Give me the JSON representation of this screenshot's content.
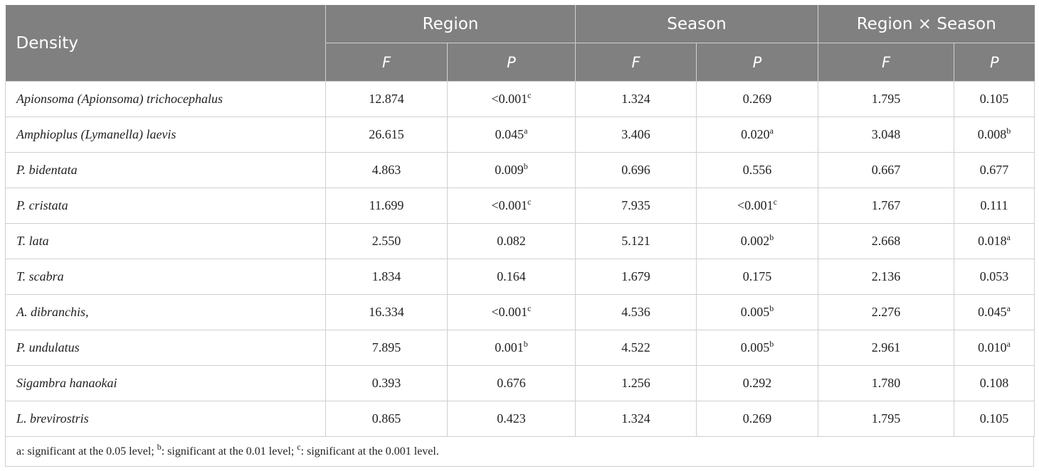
{
  "header": {
    "row_label": "Density",
    "groups": [
      "Region",
      "Season",
      "Region × Season"
    ],
    "subcols": [
      "F",
      "P",
      "F",
      "P",
      "F",
      "P"
    ]
  },
  "rows": [
    {
      "name": "Apionsoma (Apionsoma) trichocephalus",
      "cells": [
        {
          "v": "12.874",
          "s": ""
        },
        {
          "v": "<0.001",
          "s": "c"
        },
        {
          "v": "1.324",
          "s": ""
        },
        {
          "v": "0.269",
          "s": ""
        },
        {
          "v": "1.795",
          "s": ""
        },
        {
          "v": "0.105",
          "s": ""
        }
      ]
    },
    {
      "name": "Amphioplus (Lymanella) laevis",
      "cells": [
        {
          "v": "26.615",
          "s": ""
        },
        {
          "v": "0.045",
          "s": "a"
        },
        {
          "v": "3.406",
          "s": ""
        },
        {
          "v": "0.020",
          "s": "a"
        },
        {
          "v": "3.048",
          "s": ""
        },
        {
          "v": "0.008",
          "s": "b"
        }
      ]
    },
    {
      "name": "P. bidentata",
      "cells": [
        {
          "v": "4.863",
          "s": ""
        },
        {
          "v": "0.009",
          "s": "b"
        },
        {
          "v": "0.696",
          "s": ""
        },
        {
          "v": "0.556",
          "s": ""
        },
        {
          "v": "0.667",
          "s": ""
        },
        {
          "v": "0.677",
          "s": ""
        }
      ]
    },
    {
      "name": "P. cristata",
      "cells": [
        {
          "v": "11.699",
          "s": ""
        },
        {
          "v": "<0.001",
          "s": "c"
        },
        {
          "v": "7.935",
          "s": ""
        },
        {
          "v": "<0.001",
          "s": "c"
        },
        {
          "v": "1.767",
          "s": ""
        },
        {
          "v": "0.111",
          "s": ""
        }
      ]
    },
    {
      "name": "T. lata",
      "cells": [
        {
          "v": "2.550",
          "s": ""
        },
        {
          "v": "0.082",
          "s": ""
        },
        {
          "v": "5.121",
          "s": ""
        },
        {
          "v": "0.002",
          "s": "b"
        },
        {
          "v": "2.668",
          "s": ""
        },
        {
          "v": "0.018",
          "s": "a"
        }
      ]
    },
    {
      "name": "T. scabra",
      "cells": [
        {
          "v": "1.834",
          "s": ""
        },
        {
          "v": "0.164",
          "s": ""
        },
        {
          "v": "1.679",
          "s": ""
        },
        {
          "v": "0.175",
          "s": ""
        },
        {
          "v": "2.136",
          "s": ""
        },
        {
          "v": "0.053",
          "s": ""
        }
      ]
    },
    {
      "name": "A. dibranchis,",
      "cells": [
        {
          "v": "16.334",
          "s": ""
        },
        {
          "v": "<0.001",
          "s": "c"
        },
        {
          "v": "4.536",
          "s": ""
        },
        {
          "v": "0.005",
          "s": "b"
        },
        {
          "v": "2.276",
          "s": ""
        },
        {
          "v": "0.045",
          "s": "a"
        }
      ]
    },
    {
      "name": "P. undulatus",
      "cells": [
        {
          "v": "7.895",
          "s": ""
        },
        {
          "v": "0.001",
          "s": "b"
        },
        {
          "v": "4.522",
          "s": ""
        },
        {
          "v": "0.005",
          "s": "b"
        },
        {
          "v": "2.961",
          "s": ""
        },
        {
          "v": "0.010",
          "s": "a"
        }
      ]
    },
    {
      "name": "Sigambra hanaokai",
      "cells": [
        {
          "v": "0.393",
          "s": ""
        },
        {
          "v": "0.676",
          "s": ""
        },
        {
          "v": "1.256",
          "s": ""
        },
        {
          "v": "0.292",
          "s": ""
        },
        {
          "v": "1.780",
          "s": ""
        },
        {
          "v": "0.108",
          "s": ""
        }
      ]
    },
    {
      "name": "L. brevirostris",
      "cells": [
        {
          "v": "0.865",
          "s": ""
        },
        {
          "v": "0.423",
          "s": ""
        },
        {
          "v": "1.324",
          "s": ""
        },
        {
          "v": "0.269",
          "s": ""
        },
        {
          "v": "1.795",
          "s": ""
        },
        {
          "v": "0.105",
          "s": ""
        }
      ]
    }
  ],
  "footnote": {
    "a_text": "a: significant at the 0.05 level; ",
    "b_sup": "b",
    "b_text": ": significant at the 0.01 level; ",
    "c_sup": "c",
    "c_text": ": significant at the 0.001 level."
  }
}
